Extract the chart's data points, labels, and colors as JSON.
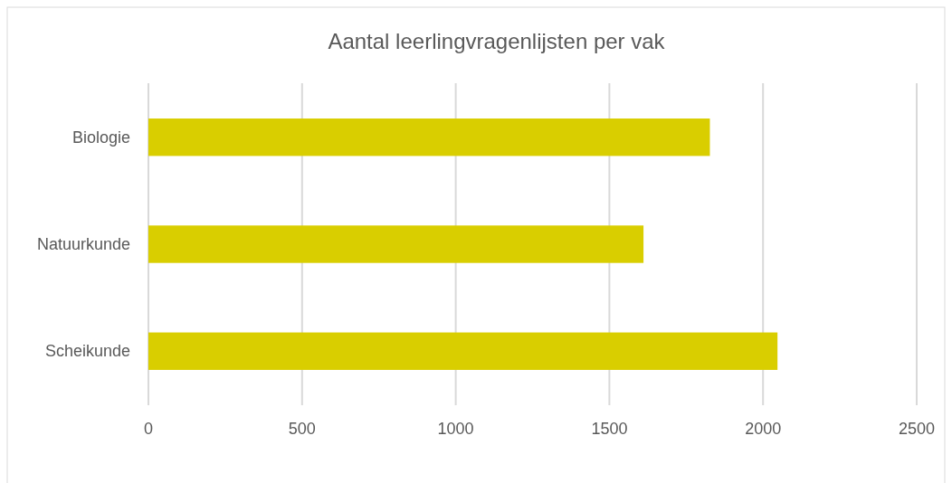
{
  "chart_data": {
    "type": "bar",
    "orientation": "horizontal",
    "title": "Aantal leerlingvragenlijsten per vak",
    "categories": [
      "Biologie",
      "Natuurkunde",
      "Scheikunde"
    ],
    "values": [
      1827,
      1611,
      2047
    ],
    "color": "#d9ce00",
    "xlim": [
      0,
      2500
    ],
    "xticks": [
      0,
      500,
      1000,
      1500,
      2000,
      2500
    ],
    "grid": "x"
  }
}
